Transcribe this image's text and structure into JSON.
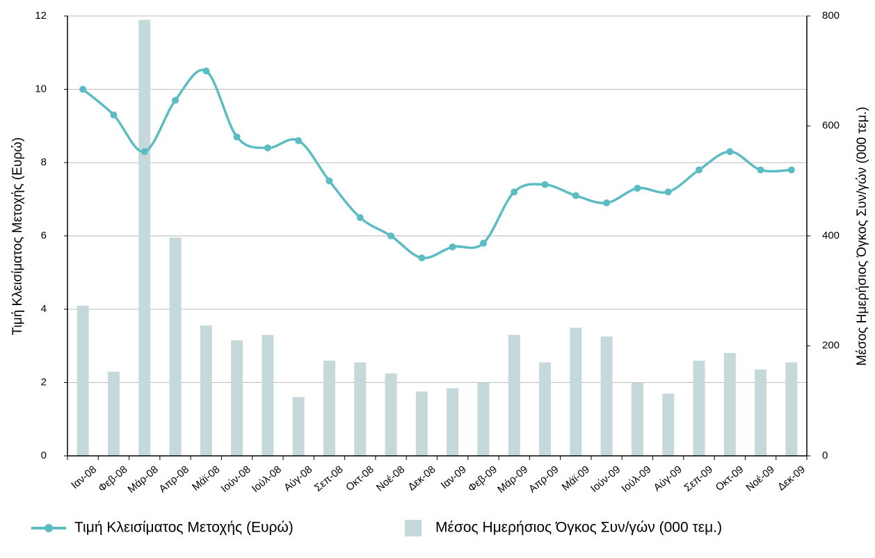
{
  "chart_data": {
    "type": "bar_line",
    "categories": [
      "Ιαν-08",
      "Φεβ-08",
      "Μάρ-08",
      "Απρ-08",
      "Μάϊ-08",
      "Ιούν-08",
      "Ιούλ-08",
      "Αύγ-08",
      "Σεπ-08",
      "Οκτ-08",
      "Νοέ-08",
      "Δεκ-08",
      "Ιαν-09",
      "Φεβ-09",
      "Μάρ-09",
      "Απρ-09",
      "Μάϊ-09",
      "Ιούν-09",
      "Ιούλ-09",
      "Αύγ-09",
      "Σεπ-09",
      "Οκτ-09",
      "Νοέ-09",
      "Δεκ-09"
    ],
    "series": [
      {
        "name": "Τιμή Κλεισίματος Μετοχής (Ευρώ)",
        "type": "line",
        "color": "#5bbcc4",
        "values": [
          10.0,
          9.3,
          8.3,
          9.7,
          10.5,
          8.7,
          8.4,
          8.6,
          7.5,
          6.5,
          6.0,
          5.4,
          5.7,
          5.8,
          7.2,
          7.4,
          7.1,
          6.9,
          7.3,
          7.2,
          7.8,
          8.3,
          7.8,
          7.8
        ]
      },
      {
        "name": "Μέσος Ημερήσιος Όγκος Συν/γών (000 τεμ.)",
        "type": "bar",
        "color": "#c5d9da",
        "axis": "y2",
        "values": [
          273,
          153,
          793,
          397,
          237,
          210,
          220,
          107,
          173,
          170,
          150,
          117,
          123,
          133,
          220,
          170,
          233,
          217,
          133,
          113,
          173,
          187,
          157,
          170
        ]
      }
    ],
    "ylabel": "Τιμή Κλεισίματος Μετοχής (Ευρώ)",
    "y2label": "Μέσος Ημερήσιος Όγκος Συν/γών (000 τεμ.)",
    "ylim": [
      0,
      12
    ],
    "yticks": [
      0,
      2,
      4,
      6,
      8,
      10,
      12
    ],
    "y2lim": [
      0,
      800
    ],
    "y2ticks": [
      0,
      200,
      400,
      600,
      800
    ],
    "grid": true,
    "legend": "bottom"
  }
}
